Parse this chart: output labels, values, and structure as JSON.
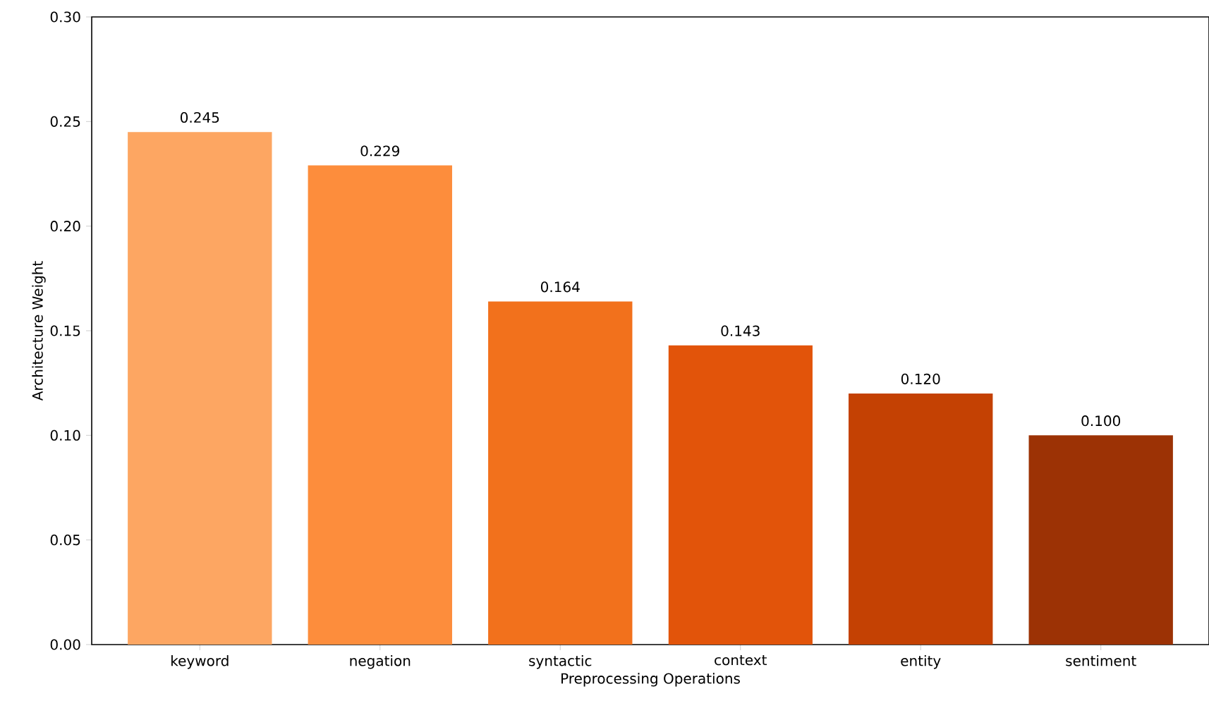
{
  "chart_data": {
    "type": "bar",
    "xlabel": "Preprocessing Operations",
    "ylabel": "Architecture Weight",
    "categories": [
      "keyword",
      "negation",
      "syntactic",
      "context",
      "entity",
      "sentiment"
    ],
    "values": [
      0.245,
      0.229,
      0.164,
      0.143,
      0.12,
      0.1
    ],
    "value_labels": [
      "0.245",
      "0.229",
      "0.164",
      "0.143",
      "0.120",
      "0.100"
    ],
    "colors": [
      "#fda662",
      "#fd8d3c",
      "#f2711c",
      "#e2540a",
      "#c44103",
      "#9c3205"
    ],
    "ylim": [
      0,
      0.3
    ],
    "yticks": [
      {
        "value": 0,
        "label": "0.00"
      },
      {
        "value": 0.05,
        "label": "0.05"
      },
      {
        "value": 0.1,
        "label": "0.10"
      },
      {
        "value": 0.15,
        "label": "0.15"
      },
      {
        "value": 0.2,
        "label": "0.20"
      },
      {
        "value": 0.25,
        "label": "0.25"
      },
      {
        "value": 0.3,
        "label": "0.30"
      }
    ],
    "grid": false
  }
}
